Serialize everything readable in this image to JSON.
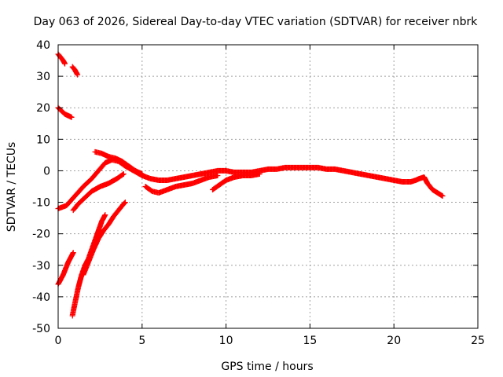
{
  "chart_data": {
    "type": "scatter",
    "title": "Day 063 of 2026, Sidereal Day-to-day VTEC variation (SDTVAR) for receiver nbrk",
    "xlabel": "GPS time / hours",
    "ylabel": "SDTVAR / TECUs",
    "xlim": [
      0,
      25
    ],
    "ylim": [
      -50,
      40
    ],
    "xticks": [
      0,
      5,
      10,
      15,
      20,
      25
    ],
    "yticks": [
      -50,
      -40,
      -30,
      -20,
      -10,
      0,
      10,
      20,
      30,
      40
    ],
    "grid": true,
    "legend": "none",
    "colors": {
      "series": "#ff0000",
      "grid": "#a0a0a0",
      "axes": "#000000",
      "background": "#ffffff"
    },
    "series": [
      {
        "name": "arc-1",
        "x": [
          0.0,
          0.15,
          0.3,
          0.4
        ],
        "y": [
          37,
          36,
          35,
          34
        ]
      },
      {
        "name": "arc-2",
        "x": [
          0.85,
          1.0,
          1.15
        ],
        "y": [
          33,
          32,
          30.5
        ]
      },
      {
        "name": "arc-3",
        "x": [
          0.0,
          0.2,
          0.4,
          0.6,
          0.8
        ],
        "y": [
          20,
          19,
          18,
          17.5,
          17
        ]
      },
      {
        "name": "arc-4",
        "x": [
          0.0,
          0.5,
          1.0,
          1.5,
          2.0,
          2.4,
          2.8,
          3.2,
          3.6,
          4.0,
          4.5,
          5.0,
          5.5,
          6.0,
          6.5,
          7.0,
          7.5,
          8.0,
          8.5,
          9.0,
          9.5,
          10.0,
          10.5,
          11.0,
          11.5,
          12.0,
          12.5,
          13.0,
          13.5,
          14.0,
          14.5,
          15.0,
          15.5,
          16.0,
          16.5,
          17.0,
          17.5,
          18.0,
          18.5,
          19.0,
          19.5,
          20.0,
          20.5,
          21.0,
          21.3,
          21.5,
          21.8,
          22.0,
          22.3,
          22.6,
          22.9
        ],
        "y": [
          -12,
          -11,
          -8,
          -5,
          -2.5,
          0,
          2.5,
          3.5,
          3,
          1.5,
          0,
          -1.5,
          -2.5,
          -3,
          -3,
          -2.5,
          -2,
          -1.5,
          -1,
          -0.5,
          0,
          0,
          -0.5,
          -0.5,
          -0.5,
          0,
          0.5,
          0.5,
          1,
          1,
          1,
          1,
          1,
          0.5,
          0.5,
          0,
          -0.5,
          -1,
          -1.5,
          -2,
          -2.5,
          -3,
          -3.5,
          -3.5,
          -3,
          -2.5,
          -2,
          -4,
          -6,
          -7,
          -8
        ]
      },
      {
        "name": "arc-5",
        "x": [
          2.2,
          2.6,
          3.0,
          3.4,
          3.8,
          4.2,
          4.6,
          5.0
        ],
        "y": [
          6,
          5.5,
          4.5,
          4,
          3,
          1.5,
          0,
          -1
        ]
      },
      {
        "name": "arc-6",
        "x": [
          0.9,
          1.2,
          1.6,
          2.0,
          2.5,
          3.0,
          3.5,
          3.9
        ],
        "y": [
          -12.5,
          -10.5,
          -8.5,
          -6.5,
          -5,
          -4,
          -2.5,
          -1
        ]
      },
      {
        "name": "arc-7",
        "x": [
          5.2,
          5.6,
          6.0,
          6.5,
          7.0,
          7.5,
          8.0,
          8.5,
          9.0,
          9.5
        ],
        "y": [
          -5,
          -6.5,
          -7,
          -6,
          -5,
          -4.5,
          -4,
          -3,
          -2,
          -1.5
        ]
      },
      {
        "name": "arc-8",
        "x": [
          9.2,
          9.6,
          10.0,
          10.5,
          11.0,
          11.5,
          12.0
        ],
        "y": [
          -6,
          -4.5,
          -3,
          -2,
          -1.5,
          -1.5,
          -1
        ]
      },
      {
        "name": "arc-9",
        "x": [
          0.0,
          0.3,
          0.6,
          0.9
        ],
        "y": [
          -36,
          -33,
          -29,
          -26
        ]
      },
      {
        "name": "arc-10",
        "x": [
          0.85,
          1.0,
          1.2,
          1.4,
          1.6,
          1.8,
          2.0,
          2.2,
          2.4,
          2.6,
          2.8
        ],
        "y": [
          -46,
          -42,
          -37,
          -33,
          -30,
          -28,
          -25,
          -22,
          -19,
          -16,
          -14
        ]
      },
      {
        "name": "arc-11",
        "x": [
          1.5,
          1.8,
          2.1,
          2.4,
          2.7,
          3.0,
          3.3,
          3.6,
          3.9,
          4.0
        ],
        "y": [
          -33,
          -29,
          -25,
          -21.5,
          -19,
          -17,
          -14.5,
          -12.5,
          -10.5,
          -10
        ]
      }
    ]
  }
}
